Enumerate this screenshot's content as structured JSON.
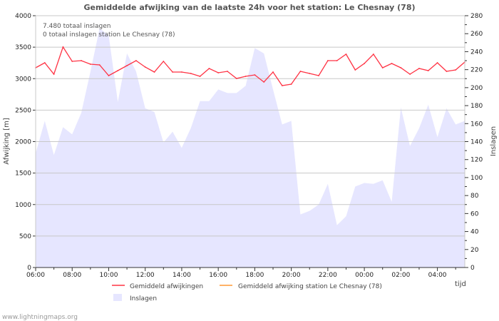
{
  "chart_data": {
    "type": "line+area",
    "title": "Gemiddelde afwijking van de laatste 24h voor het station: Le Chesnay (78)",
    "xlabel": "tijd",
    "ylabel": "Afwijking  [m]",
    "y2label": "Inslagen",
    "ylim": [
      0,
      4000
    ],
    "y2lim": [
      0,
      280
    ],
    "yticks": [
      0,
      500,
      1000,
      1500,
      2000,
      2500,
      3000,
      3500,
      4000
    ],
    "y2ticks": [
      0,
      20,
      40,
      60,
      80,
      100,
      120,
      140,
      160,
      180,
      200,
      220,
      240,
      260,
      280
    ],
    "xticks": [
      "06:00",
      "08:00",
      "10:00",
      "12:00",
      "14:00",
      "16:00",
      "18:00",
      "20:00",
      "22:00",
      "00:00",
      "02:00",
      "04:00"
    ],
    "grid": true,
    "annotations": [
      "7.480 totaal inslagen",
      "0 totaal inslagen station Le Chesnay (78)"
    ],
    "legend": [
      {
        "label": "Gemiddeld afwijkingen",
        "color": "#ff3344"
      },
      {
        "label": "Gemiddeld afwijking station Le Chesnay (78)",
        "color": "#ff9933"
      },
      {
        "label": "Inslagen",
        "color": "#e6e6ff"
      }
    ],
    "interval_minutes": 30,
    "start": "06:00",
    "series": [
      {
        "name": "Gemiddeld afwijkingen",
        "axis": "left",
        "values": [
          3173,
          3252,
          3071,
          3502,
          3275,
          3286,
          3230,
          3218,
          3048,
          3127,
          3207,
          3286,
          3184,
          3105,
          3275,
          3105,
          3105,
          3082,
          3037,
          3161,
          3093,
          3116,
          3003,
          3037,
          3059,
          2946,
          3105,
          2890,
          2912,
          3116,
          3082,
          3048,
          3286,
          3286,
          3388,
          3139,
          3241,
          3388,
          3173,
          3241,
          3173,
          3071,
          3161,
          3127,
          3252,
          3116,
          3139,
          3263
        ]
      },
      {
        "name": "Inslagen",
        "axis": "right",
        "values": [
          127,
          163,
          125,
          156,
          148,
          172,
          218,
          266,
          258,
          184,
          238,
          218,
          177,
          173,
          139,
          151,
          133,
          155,
          185,
          185,
          198,
          194,
          194,
          202,
          244,
          238,
          198,
          159,
          163,
          59,
          63,
          70,
          93,
          47,
          57,
          90,
          94,
          93,
          97,
          73,
          178,
          135,
          155,
          181,
          145,
          177,
          159,
          163
        ]
      }
    ]
  },
  "footer": "www.lightningmaps.org"
}
